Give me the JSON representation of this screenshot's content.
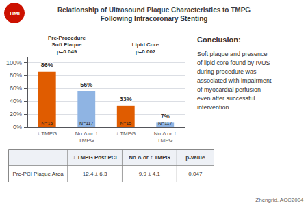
{
  "chart_data": {
    "type": "bar",
    "title": "Relationship of Ultrasound Plaque Characteristics to TMPG",
    "subtitle": "Following Intracoronary Stenting",
    "categories": [
      "↓ TMPG",
      "No Δ or ↑\nTMPG",
      "↓ TMPG",
      "No Δ or ↑\nTMPG"
    ],
    "values": [
      86,
      56,
      33,
      7
    ],
    "value_labels": [
      "86%",
      "56%",
      "33%",
      "7%"
    ],
    "n_labels": [
      "N=15",
      "N=117",
      "N=15",
      "N=117"
    ],
    "colors": [
      "#E05C00",
      "#8FB4E3",
      "#E05C00",
      "#8FB4E3"
    ],
    "group_labels": [
      "Pre-Procedure\nSoft Plaque\np=0.049",
      "Lipid Core\np=0.002"
    ],
    "ylim": [
      0,
      108
    ],
    "yticks": [
      {
        "value": 0,
        "label": "0%"
      },
      {
        "value": 20,
        "label": "20%"
      },
      {
        "value": 40,
        "label": "40%"
      },
      {
        "value": 60,
        "label": "60%"
      },
      {
        "value": 80,
        "label": "80%"
      },
      {
        "value": 100,
        "label": "100%"
      }
    ],
    "grid": true,
    "data_labels": true,
    "conclusion_title": "Conclusion:",
    "conclusion_text": "Soft plaque and presence\nof lipid core found by IVUS\nduring procedure was\nassociated with impairment\nof myocardial perfusion\neven after successful\nintervention.",
    "table": {
      "headers": [
        null,
        "↓ TMPG Post PCI",
        "No Δ or ↑ TMPG",
        "p-value"
      ],
      "rows": [
        [
          "Pre-PCI Plaque Area",
          "12.4 ± 6.3",
          "9.9 ± 4.1",
          "0.047"
        ]
      ]
    },
    "footer": "Zhengrid. ACC2004",
    "logo_text": "TIMI",
    "logo_color": "#CC1100"
  }
}
